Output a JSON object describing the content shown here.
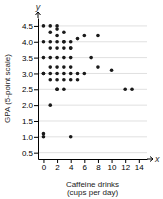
{
  "chart_data": {
    "type": "scatter",
    "xlabel": "Caffeine drinks\n(cups per day)",
    "ylabel": "GPA (5-point scale)",
    "annotations": [
      "x",
      "y"
    ],
    "color": "#1a1a1a",
    "grid": "y",
    "xlim": [
      -0.8,
      15.2
    ],
    "ylim": [
      0.3,
      4.75
    ],
    "xticks": [
      0,
      2,
      4,
      6,
      8,
      10,
      12,
      14
    ],
    "yticks": [
      0.5,
      {
        "value": 1.0,
        "label": "1.0"
      },
      1.5,
      {
        "value": 2.0,
        "label": "2.0"
      },
      2.5,
      {
        "value": 3.0,
        "label": "3.0"
      },
      3.5,
      {
        "value": 4.0,
        "label": "4.0"
      },
      4.5
    ],
    "x": [
      0,
      0,
      0,
      0,
      0,
      0,
      0,
      1,
      1,
      1,
      1,
      1,
      1,
      1,
      1,
      1,
      2,
      2,
      2,
      2,
      2,
      2,
      2,
      2,
      2,
      2,
      2,
      3,
      3,
      3,
      3,
      3,
      3,
      3,
      3,
      3,
      4,
      4,
      4,
      4,
      4,
      4,
      4,
      4,
      5,
      5,
      5,
      6,
      6,
      7,
      8,
      8,
      10,
      12,
      13
    ],
    "values": [
      4.5,
      4.0,
      3.5,
      3.0,
      3.0,
      1.1,
      1.0,
      4.5,
      4.3,
      4.0,
      3.8,
      3.5,
      3.2,
      3.0,
      2.8,
      2.0,
      4.5,
      4.4,
      4.2,
      4.0,
      3.8,
      3.5,
      3.2,
      3.0,
      2.8,
      2.5,
      2.5,
      4.3,
      4.0,
      4.0,
      3.8,
      3.5,
      3.2,
      3.0,
      2.8,
      2.5,
      4.0,
      3.8,
      3.8,
      3.5,
      3.2,
      3.0,
      2.8,
      1.0,
      4.1,
      3.0,
      2.8,
      4.2,
      3.0,
      3.5,
      4.2,
      3.2,
      3.1,
      2.5,
      2.5
    ]
  }
}
